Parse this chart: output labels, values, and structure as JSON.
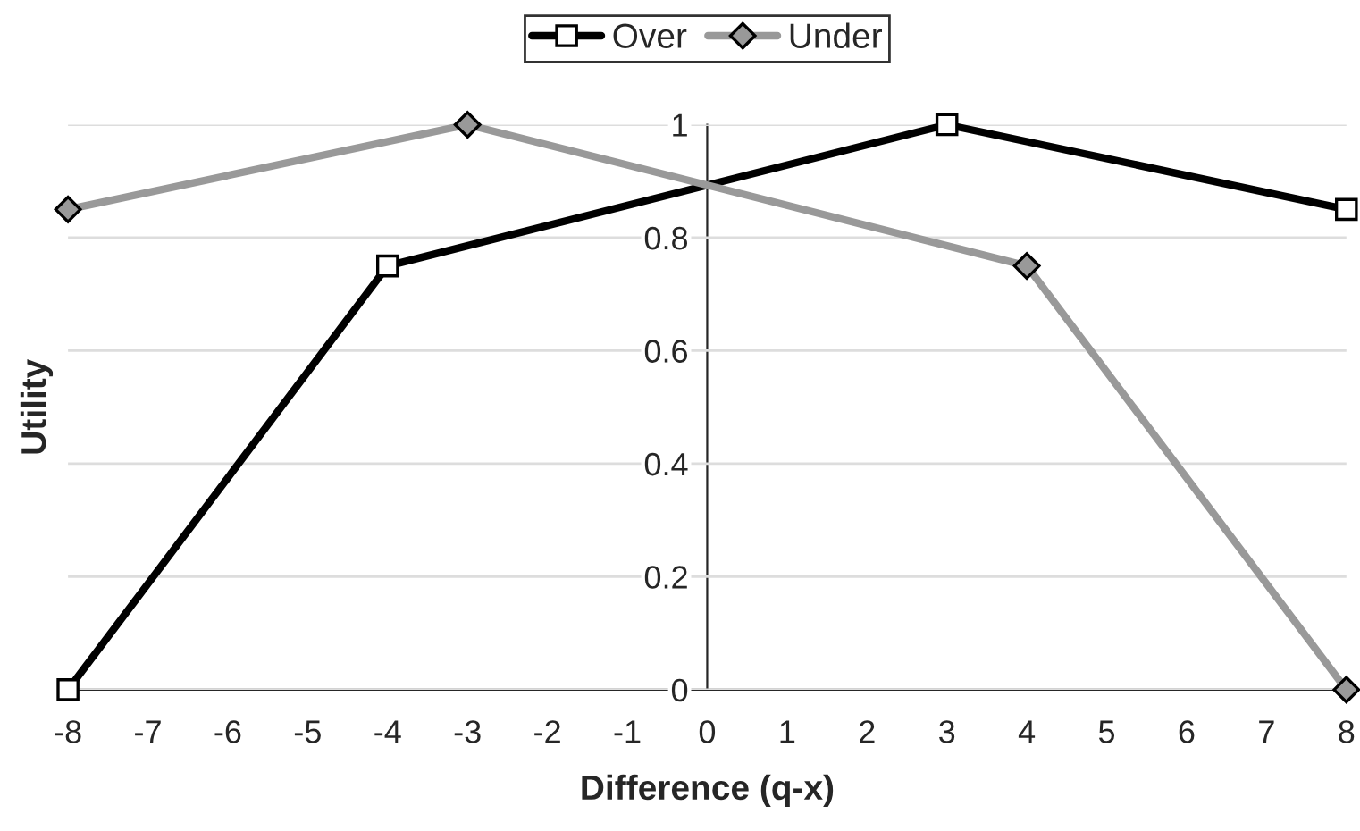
{
  "chart_data": {
    "type": "line",
    "xlabel": "Difference (q-x)",
    "ylabel": "Utility",
    "series": [
      {
        "name": "Over",
        "color": "#000000",
        "marker": "square",
        "x": [
          -8,
          -4,
          3,
          8
        ],
        "values": [
          0,
          0.75,
          1,
          0.85
        ]
      },
      {
        "name": "Under",
        "color": "#999999",
        "marker": "diamond",
        "x": [
          -8,
          -3,
          4,
          8
        ],
        "values": [
          0.85,
          1,
          0.75,
          0
        ]
      }
    ],
    "xlim": [
      -8,
      8
    ],
    "xticks": [
      -8,
      -7,
      -6,
      -5,
      -4,
      -3,
      -2,
      -1,
      0,
      1,
      2,
      3,
      4,
      5,
      6,
      7,
      8
    ],
    "ylim": [
      0,
      1
    ],
    "yticks": [
      0,
      0.2,
      0.4,
      0.6,
      0.8,
      1
    ],
    "grid": "y",
    "legend": "top",
    "line_style": "solid"
  }
}
